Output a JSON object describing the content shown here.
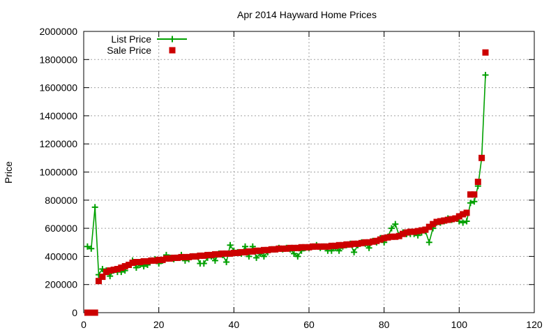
{
  "chart_data": {
    "type": "scatter",
    "title": "Apr 2014 Hayward Home Prices",
    "xlabel": "",
    "ylabel": "Price",
    "xlim": [
      0,
      120
    ],
    "ylim": [
      0,
      2000000
    ],
    "x_ticks": [
      "0",
      "20",
      "40",
      "60",
      "80",
      "100",
      "120"
    ],
    "y_ticks": [
      "0",
      "200000",
      "400000",
      "600000",
      "800000",
      "1000000",
      "1200000",
      "1400000",
      "1600000",
      "1800000",
      "2000000"
    ],
    "grid": true,
    "legend_position": "top-left",
    "series": [
      {
        "name": "List Price",
        "style": "linespoints",
        "marker": "plus",
        "color": "#00a000",
        "x": [
          1,
          2,
          3,
          4,
          5,
          6,
          7,
          8,
          9,
          10,
          11,
          12,
          13,
          14,
          15,
          16,
          17,
          18,
          19,
          20,
          21,
          22,
          23,
          24,
          25,
          26,
          27,
          28,
          29,
          30,
          31,
          32,
          33,
          34,
          35,
          36,
          37,
          38,
          39,
          40,
          41,
          42,
          43,
          44,
          45,
          46,
          47,
          48,
          49,
          50,
          51,
          52,
          53,
          54,
          55,
          56,
          57,
          58,
          59,
          60,
          61,
          62,
          63,
          64,
          65,
          66,
          67,
          68,
          69,
          70,
          71,
          72,
          73,
          74,
          75,
          76,
          77,
          78,
          79,
          80,
          81,
          82,
          83,
          84,
          85,
          86,
          87,
          88,
          89,
          90,
          91,
          92,
          93,
          94,
          95,
          96,
          97,
          98,
          99,
          100,
          101,
          102,
          103,
          104,
          105,
          106,
          107
        ],
        "values": [
          470000,
          455000,
          750000,
          270000,
          310000,
          300000,
          260000,
          300000,
          290000,
          290000,
          300000,
          340000,
          370000,
          320000,
          340000,
          330000,
          340000,
          370000,
          380000,
          350000,
          370000,
          410000,
          390000,
          380000,
          390000,
          410000,
          370000,
          380000,
          400000,
          400000,
          350000,
          350000,
          390000,
          400000,
          370000,
          420000,
          410000,
          360000,
          480000,
          440000,
          430000,
          420000,
          470000,
          400000,
          470000,
          390000,
          420000,
          400000,
          430000,
          450000,
          450000,
          460000,
          450000,
          460000,
          450000,
          420000,
          400000,
          440000,
          460000,
          460000,
          470000,
          480000,
          460000,
          470000,
          440000,
          440000,
          460000,
          440000,
          470000,
          480000,
          490000,
          430000,
          480000,
          500000,
          490000,
          460000,
          510000,
          500000,
          530000,
          500000,
          540000,
          600000,
          630000,
          550000,
          570000,
          560000,
          560000,
          560000,
          550000,
          570000,
          580000,
          500000,
          600000,
          640000,
          640000,
          650000,
          670000,
          660000,
          670000,
          650000,
          640000,
          650000,
          780000,
          790000,
          900000,
          1100000,
          1690000
        ]
      },
      {
        "name": "Sale Price",
        "style": "points",
        "marker": "square",
        "color": "#cc0000",
        "x": [
          1,
          2,
          3,
          4,
          5,
          6,
          7,
          8,
          9,
          10,
          11,
          12,
          13,
          14,
          15,
          16,
          17,
          18,
          19,
          20,
          21,
          22,
          23,
          24,
          25,
          26,
          27,
          28,
          29,
          30,
          31,
          32,
          33,
          34,
          35,
          36,
          37,
          38,
          39,
          40,
          41,
          42,
          43,
          44,
          45,
          46,
          47,
          48,
          49,
          50,
          51,
          52,
          53,
          54,
          55,
          56,
          57,
          58,
          59,
          60,
          61,
          62,
          63,
          64,
          65,
          66,
          67,
          68,
          69,
          70,
          71,
          72,
          73,
          74,
          75,
          76,
          77,
          78,
          79,
          80,
          81,
          82,
          83,
          84,
          85,
          86,
          87,
          88,
          89,
          90,
          91,
          92,
          93,
          94,
          95,
          96,
          97,
          98,
          99,
          100,
          101,
          102,
          103,
          104,
          105,
          106,
          107
        ],
        "values": [
          0,
          0,
          0,
          225000,
          255000,
          290000,
          300000,
          305000,
          310000,
          320000,
          330000,
          340000,
          355000,
          360000,
          360000,
          365000,
          365000,
          370000,
          370000,
          375000,
          375000,
          385000,
          385000,
          390000,
          390000,
          395000,
          395000,
          395000,
          400000,
          400000,
          405000,
          405000,
          410000,
          410000,
          415000,
          415000,
          420000,
          420000,
          420000,
          425000,
          425000,
          430000,
          430000,
          435000,
          435000,
          440000,
          440000,
          445000,
          445000,
          450000,
          450000,
          455000,
          455000,
          455000,
          460000,
          460000,
          460000,
          465000,
          465000,
          465000,
          470000,
          470000,
          470000,
          470000,
          470000,
          475000,
          475000,
          480000,
          480000,
          485000,
          485000,
          490000,
          490000,
          495000,
          500000,
          500000,
          505000,
          510000,
          520000,
          530000,
          535000,
          540000,
          540000,
          545000,
          560000,
          570000,
          575000,
          575000,
          580000,
          585000,
          590000,
          610000,
          630000,
          645000,
          650000,
          655000,
          660000,
          665000,
          670000,
          685000,
          700000,
          710000,
          840000,
          840000,
          930000,
          1100000,
          1850000
        ]
      }
    ]
  }
}
